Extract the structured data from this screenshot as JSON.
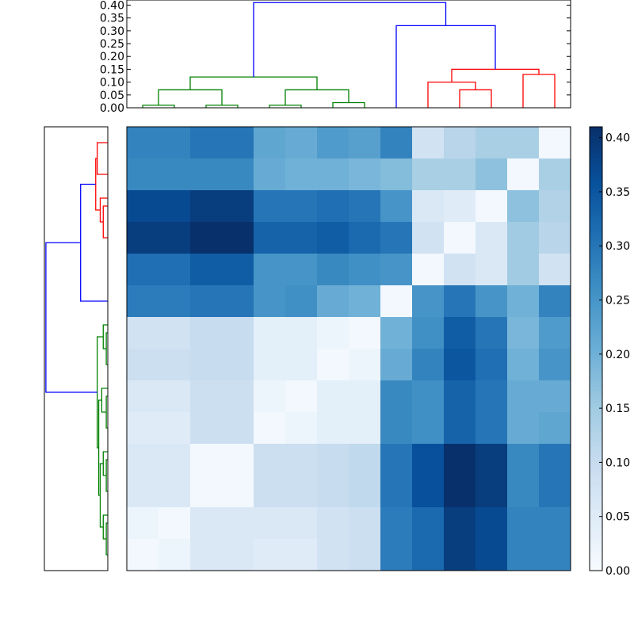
{
  "chart_data": [
    {
      "type": "heatmap",
      "rows": 14,
      "cols": 14,
      "colormap": "Blues",
      "vmin": 0.0,
      "vmax": 0.41,
      "x_tick_labels": [],
      "y_tick_labels": [],
      "values": [
        [
          0.28,
          0.28,
          0.3,
          0.3,
          0.22,
          0.21,
          0.24,
          0.23,
          0.28,
          0.08,
          0.12,
          0.14,
          0.14,
          0.01
        ],
        [
          0.27,
          0.27,
          0.27,
          0.27,
          0.21,
          0.2,
          0.2,
          0.19,
          0.18,
          0.14,
          0.14,
          0.17,
          0.01,
          0.14
        ],
        [
          0.37,
          0.37,
          0.39,
          0.39,
          0.3,
          0.3,
          0.31,
          0.3,
          0.25,
          0.06,
          0.05,
          0.01,
          0.17,
          0.13
        ],
        [
          0.39,
          0.39,
          0.41,
          0.41,
          0.33,
          0.33,
          0.34,
          0.32,
          0.3,
          0.08,
          0.01,
          0.06,
          0.15,
          0.12
        ],
        [
          0.31,
          0.31,
          0.34,
          0.34,
          0.25,
          0.25,
          0.27,
          0.26,
          0.25,
          0.01,
          0.08,
          0.06,
          0.15,
          0.08
        ],
        [
          0.29,
          0.29,
          0.3,
          0.3,
          0.25,
          0.26,
          0.21,
          0.2,
          0.01,
          0.25,
          0.3,
          0.25,
          0.2,
          0.28
        ],
        [
          0.08,
          0.08,
          0.1,
          0.1,
          0.04,
          0.04,
          0.02,
          0.01,
          0.2,
          0.26,
          0.34,
          0.3,
          0.19,
          0.24
        ],
        [
          0.09,
          0.09,
          0.1,
          0.1,
          0.04,
          0.04,
          0.01,
          0.02,
          0.21,
          0.28,
          0.35,
          0.31,
          0.2,
          0.25
        ],
        [
          0.06,
          0.06,
          0.09,
          0.09,
          0.02,
          0.01,
          0.04,
          0.04,
          0.27,
          0.26,
          0.33,
          0.3,
          0.21,
          0.21
        ],
        [
          0.05,
          0.05,
          0.09,
          0.09,
          0.01,
          0.02,
          0.04,
          0.04,
          0.27,
          0.26,
          0.33,
          0.3,
          0.21,
          0.22
        ],
        [
          0.06,
          0.06,
          0.01,
          0.01,
          0.09,
          0.09,
          0.1,
          0.11,
          0.3,
          0.36,
          0.41,
          0.39,
          0.27,
          0.3
        ],
        [
          0.06,
          0.06,
          0.01,
          0.01,
          0.09,
          0.09,
          0.1,
          0.11,
          0.3,
          0.36,
          0.41,
          0.39,
          0.27,
          0.3
        ],
        [
          0.02,
          0.01,
          0.06,
          0.06,
          0.06,
          0.06,
          0.08,
          0.09,
          0.29,
          0.32,
          0.39,
          0.37,
          0.28,
          0.28
        ],
        [
          0.01,
          0.02,
          0.06,
          0.06,
          0.05,
          0.05,
          0.08,
          0.09,
          0.29,
          0.32,
          0.39,
          0.37,
          0.28,
          0.28
        ]
      ]
    },
    {
      "type": "dendrogram",
      "orientation": "top",
      "ylim": [
        0.0,
        0.42
      ],
      "y_tick_labels": [
        "0.00",
        "0.05",
        "0.10",
        "0.15",
        "0.20",
        "0.25",
        "0.30",
        "0.35",
        "0.40"
      ],
      "leaf_count": 14,
      "links": [
        {
          "left": 0.5,
          "right": 1.5,
          "height": 0.01,
          "color": "#008000"
        },
        {
          "left": 2.5,
          "right": 3.5,
          "height": 0.01,
          "color": "#008000"
        },
        {
          "left": 1.0,
          "right": 3.0,
          "height": 0.07,
          "color": "#008000"
        },
        {
          "left": 4.5,
          "right": 5.5,
          "height": 0.01,
          "color": "#008000"
        },
        {
          "left": 6.5,
          "right": 7.5,
          "height": 0.02,
          "color": "#008000"
        },
        {
          "left": 5.0,
          "right": 7.0,
          "height": 0.07,
          "color": "#008000"
        },
        {
          "left": 2.0,
          "right": 6.0,
          "height": 0.12,
          "color": "#008000"
        },
        {
          "left": 10.5,
          "right": 11.5,
          "height": 0.07,
          "color": "#ff0000"
        },
        {
          "left": 9.5,
          "right": 11.0,
          "height": 0.1,
          "color": "#ff0000"
        },
        {
          "left": 12.5,
          "right": 13.5,
          "height": 0.13,
          "color": "#ff0000"
        },
        {
          "left": 10.25,
          "right": 13.0,
          "height": 0.15,
          "color": "#ff0000"
        },
        {
          "left": 8.5,
          "right": 11.625,
          "height": 0.32,
          "color": "#0000ff"
        },
        {
          "left": 4.0,
          "right": 10.0625,
          "height": 0.41,
          "color": "#0000ff"
        }
      ]
    },
    {
      "type": "dendrogram",
      "orientation": "left",
      "leaf_count": 14,
      "xlim": [
        0.0,
        0.42
      ],
      "links": [
        {
          "left": 0.5,
          "right": 1.5,
          "height": 0.07,
          "color": "#ff0000"
        },
        {
          "left": 2.5,
          "right": 3.5,
          "height": 0.03,
          "color": "#ff0000"
        },
        {
          "left": 2.25,
          "right": 3.0,
          "height": 0.05,
          "color": "#ff0000"
        },
        {
          "left": 1.0,
          "right": 2.625,
          "height": 0.08,
          "color": "#ff0000"
        },
        {
          "left": 5.5,
          "right": 1.8125,
          "height": 0.18,
          "color": "#0000ff"
        },
        {
          "left": 6.5,
          "right": 7.5,
          "height": 0.01,
          "color": "#008000"
        },
        {
          "left": 6.25,
          "right": 7.0,
          "height": 0.03,
          "color": "#008000"
        },
        {
          "left": 8.5,
          "right": 9.5,
          "height": 0.01,
          "color": "#008000"
        },
        {
          "left": 8.25,
          "right": 9.0,
          "height": 0.04,
          "color": "#008000"
        },
        {
          "left": 10.5,
          "right": 11.5,
          "height": 0.01,
          "color": "#008000"
        },
        {
          "left": 10.25,
          "right": 11.0,
          "height": 0.03,
          "color": "#008000"
        },
        {
          "left": 12.5,
          "right": 13.5,
          "height": 0.01,
          "color": "#008000"
        },
        {
          "left": 12.25,
          "right": 13.0,
          "height": 0.03,
          "color": "#008000"
        },
        {
          "left": 10.625,
          "right": 12.625,
          "height": 0.05,
          "color": "#008000"
        },
        {
          "left": 8.625,
          "right": 11.625,
          "height": 0.06,
          "color": "#008000"
        },
        {
          "left": 6.625,
          "right": 10.125,
          "height": 0.07,
          "color": "#008000"
        },
        {
          "left": 3.65625,
          "right": 8.375,
          "height": 0.41,
          "color": "#0000ff"
        }
      ]
    },
    {
      "type": "colorbar",
      "vmin": 0.0,
      "vmax": 0.41,
      "tick_labels": [
        "0.00",
        "0.05",
        "0.10",
        "0.15",
        "0.20",
        "0.25",
        "0.30",
        "0.35",
        "0.40"
      ]
    }
  ]
}
